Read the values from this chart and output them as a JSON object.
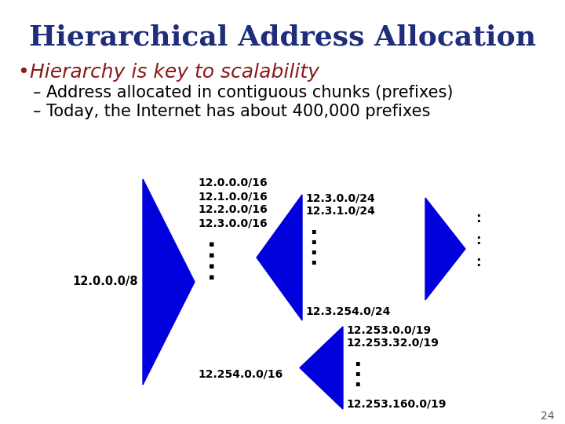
{
  "title": "Hierarchical Address Allocation",
  "title_color": "#1F2D7B",
  "title_fontsize": 26,
  "bullet_color": "#8B1A1A",
  "bullet_text": "Hierarchy is key to scalability",
  "bullet_fontsize": 18,
  "sub1": "– Address allocated in contiguous chunks (prefixes)",
  "sub2": "– Today, the Internet has about 400,000 prefixes",
  "sub_fontsize": 15,
  "sub_color": "#000000",
  "shape_color": "#0000DD",
  "label_12008": "12.0.0.0/8",
  "labels_16": [
    "12.0.0.0/16",
    "12.1.0.0/16",
    "12.2.0.0/16",
    "12.3.0.0/16"
  ],
  "label_bot16": "12.254.0.0/16",
  "labels_24_top": [
    "12.3.0.0/24",
    "12.3.1.0/24"
  ],
  "label_24_bot": "12.3.254.0/24",
  "labels_19": [
    "12.253.0.0/19",
    "12.253.32.0/19"
  ],
  "label_19_bot": "12.253.160.0/19",
  "page_num": "24",
  "bg_color": "#FFFFFF"
}
